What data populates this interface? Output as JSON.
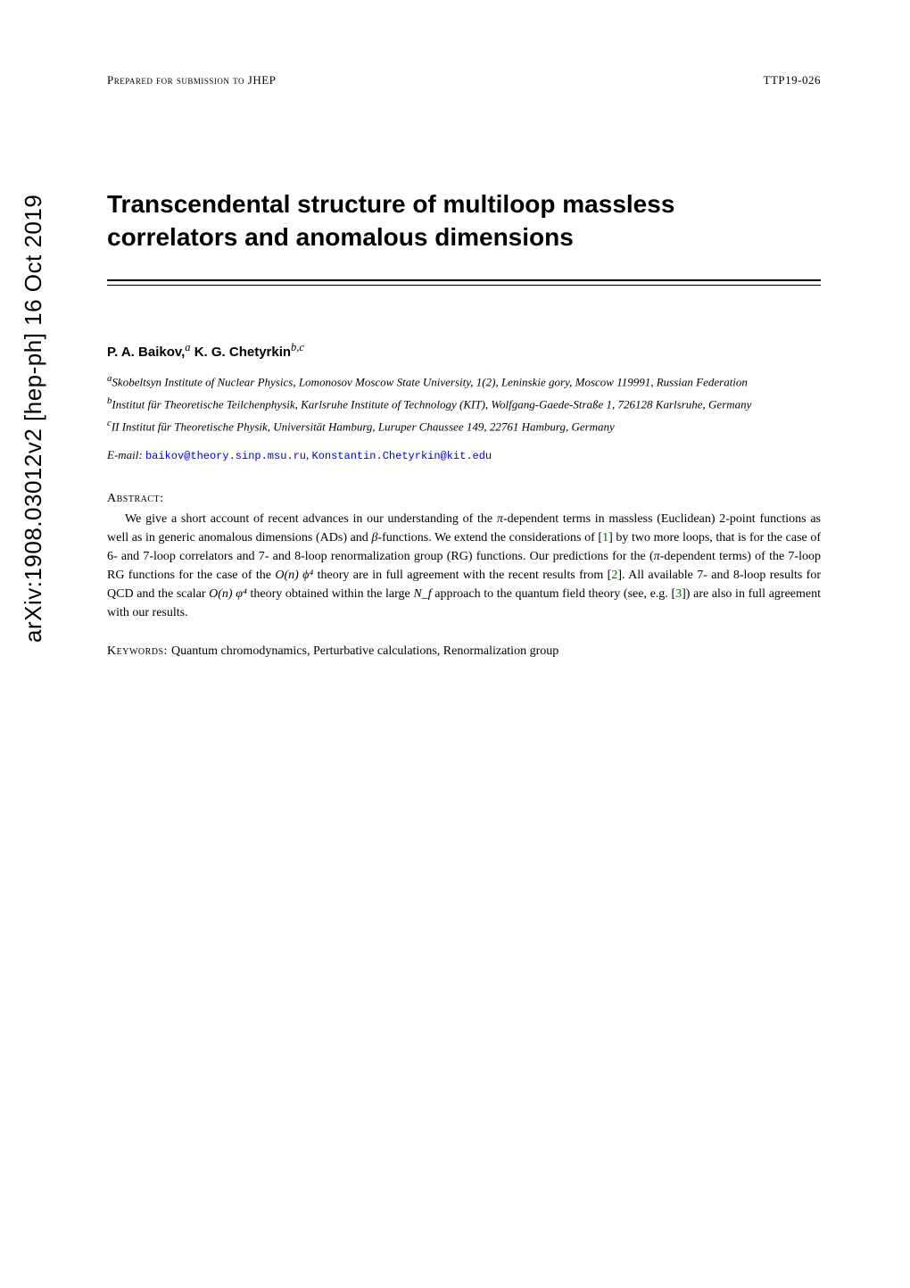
{
  "arxiv": {
    "id": "arXiv:1908.03012v2  [hep-ph]  16 Oct 2019"
  },
  "header": {
    "prepared": "Prepared for submission to JHEP",
    "reportno": "TTP19-026"
  },
  "title_line1": "Transcendental structure of multiloop massless",
  "title_line2": "correlators and anomalous dimensions",
  "authors": {
    "name1": "P. A. Baikov,",
    "sup1": "a",
    "name2": " K. G. Chetyrkin",
    "sup2": "b,c"
  },
  "affiliations": {
    "a_sup": "a",
    "a_text": "Skobeltsyn Institute of Nuclear Physics, Lomonosov Moscow State University, 1(2), Leninskie gory, Moscow 119991, Russian Federation",
    "b_sup": "b",
    "b_text": "Institut für Theoretische Teilchenphysik, Karlsruhe Institute of Technology (KIT), Wolfgang-Gaede-Straße 1, 726128 Karlsruhe, Germany",
    "c_sup": "c",
    "c_text": "II Institut für Theoretische Physik, Universität Hamburg, Luruper Chaussee 149, 22761 Hamburg, Germany"
  },
  "email": {
    "label": "E-mail: ",
    "addr1": "baikov@theory.sinp.msu.ru",
    "sep": ", ",
    "addr2": "Konstantin.Chetyrkin@kit.edu"
  },
  "abstract": {
    "label": "Abstract:",
    "p1a": "We give a short account of recent advances in our understanding of the ",
    "pi": "π",
    "p1b": "-dependent terms in massless (Euclidean) 2-point functions as well as in generic anomalous dimensions (ADs) and ",
    "beta": "β",
    "p1c": "-functions. We extend the considerations of [",
    "ref1": "1",
    "p1d": "] by two more loops, that is for the case of 6- and 7-loop correlators and 7- and 8-loop renormalization group (RG) functions. Our predictions for the (",
    "p1e": "-dependent terms) of the 7-loop RG functions for the case of the ",
    "On": "O(n)",
    "phi4": " ϕ⁴",
    "p1f": " theory are in full agreement with the recent results from [",
    "ref2": "2",
    "p1g": "]. All available 7- and 8-loop results for QCD and the scalar ",
    "varphi4": " φ⁴",
    "p1h": " theory obtained within the large ",
    "Nf": "N_f",
    "p1i": " approach to the quantum field theory (see, e.g. [",
    "ref3": "3",
    "p1j": "])  are also in full agreement with our results."
  },
  "keywords": {
    "label": "Keywords: ",
    "text": "Quantum chromodynamics, Perturbative calculations, Renormalization group"
  },
  "colors": {
    "link_blue": "#0000cc",
    "ref_green": "#006600",
    "text": "#000000",
    "bg": "#ffffff"
  }
}
